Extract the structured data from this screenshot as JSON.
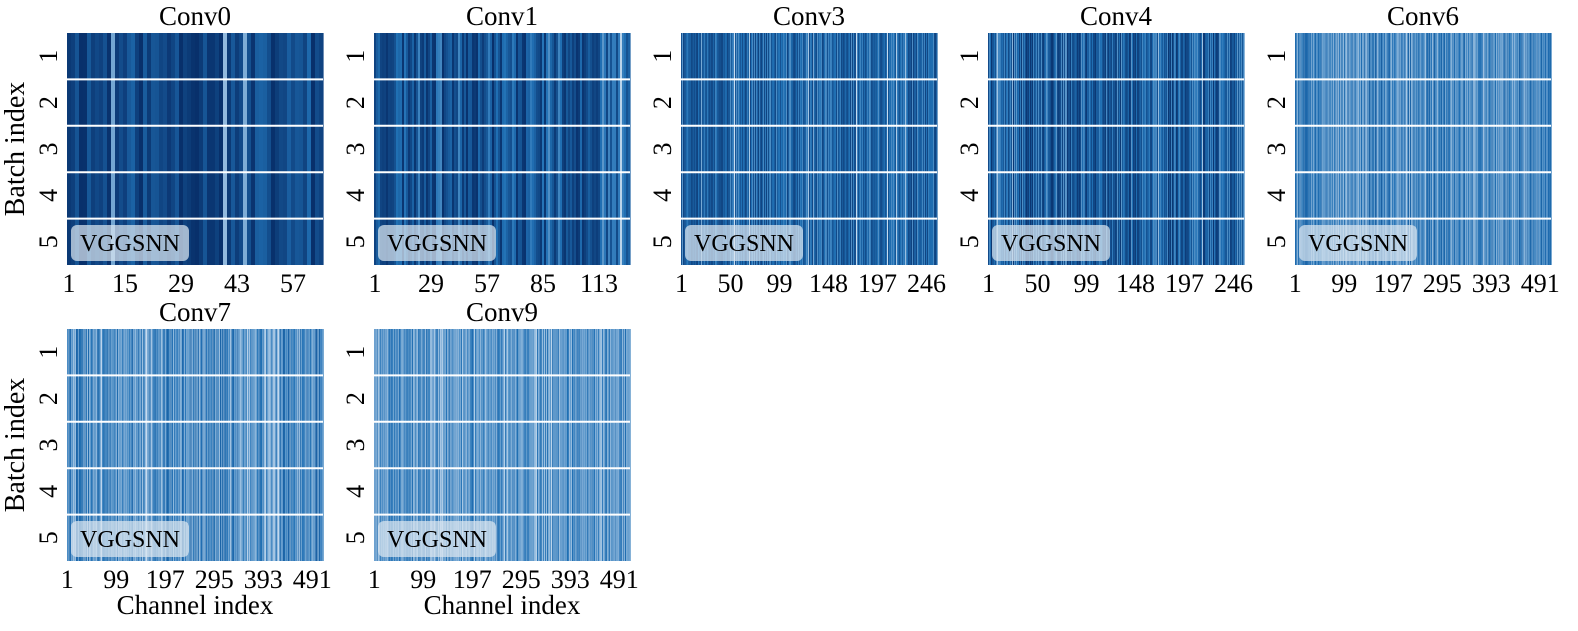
{
  "colors": {
    "cmap_dark": "#08306b",
    "cmap_mid": "#2171b5",
    "cmap_light": "#c6dbef",
    "separator": "#ffffff",
    "legend_box": "#dbe6f0"
  },
  "figure": {
    "ylabel": "Batch index",
    "xlabel": "Channel index",
    "batch_ticks": [
      "1",
      "2",
      "3",
      "4",
      "5"
    ],
    "legend_label": "VGGSNN"
  },
  "chart_data": [
    {
      "type": "heatmap",
      "title": "Conv0",
      "channels": 64,
      "x_ticks": [
        "1",
        "15",
        "29",
        "43",
        "57"
      ],
      "rows": 5,
      "legend": "VGGSNN",
      "mean_intensity": 0.18,
      "spread": 0.22,
      "seed": 11
    },
    {
      "type": "heatmap",
      "title": "Conv1",
      "channels": 128,
      "x_ticks": [
        "1",
        "29",
        "57",
        "85",
        "113"
      ],
      "rows": 5,
      "legend": "VGGSNN",
      "mean_intensity": 0.3,
      "spread": 0.3,
      "seed": 23
    },
    {
      "type": "heatmap",
      "title": "Conv3",
      "channels": 256,
      "x_ticks": [
        "1",
        "50",
        "99",
        "148",
        "197",
        "246"
      ],
      "rows": 5,
      "legend": "VGGSNN",
      "mean_intensity": 0.4,
      "spread": 0.26,
      "seed": 37
    },
    {
      "type": "heatmap",
      "title": "Conv4",
      "channels": 256,
      "x_ticks": [
        "1",
        "50",
        "99",
        "148",
        "197",
        "246"
      ],
      "rows": 5,
      "legend": "VGGSNN",
      "mean_intensity": 0.36,
      "spread": 0.32,
      "seed": 41
    },
    {
      "type": "heatmap",
      "title": "Conv6",
      "channels": 512,
      "x_ticks": [
        "1",
        "99",
        "197",
        "295",
        "393",
        "491"
      ],
      "rows": 5,
      "legend": "VGGSNN",
      "mean_intensity": 0.62,
      "spread": 0.26,
      "seed": 53
    },
    {
      "type": "heatmap",
      "title": "Conv7",
      "channels": 512,
      "x_ticks": [
        "1",
        "99",
        "197",
        "295",
        "393",
        "491"
      ],
      "rows": 5,
      "legend": "VGGSNN",
      "mean_intensity": 0.64,
      "spread": 0.28,
      "seed": 67
    },
    {
      "type": "heatmap",
      "title": "Conv9",
      "channels": 512,
      "x_ticks": [
        "1",
        "99",
        "197",
        "295",
        "393",
        "491"
      ],
      "rows": 5,
      "legend": "VGGSNN",
      "mean_intensity": 0.68,
      "spread": 0.26,
      "seed": 79
    }
  ]
}
